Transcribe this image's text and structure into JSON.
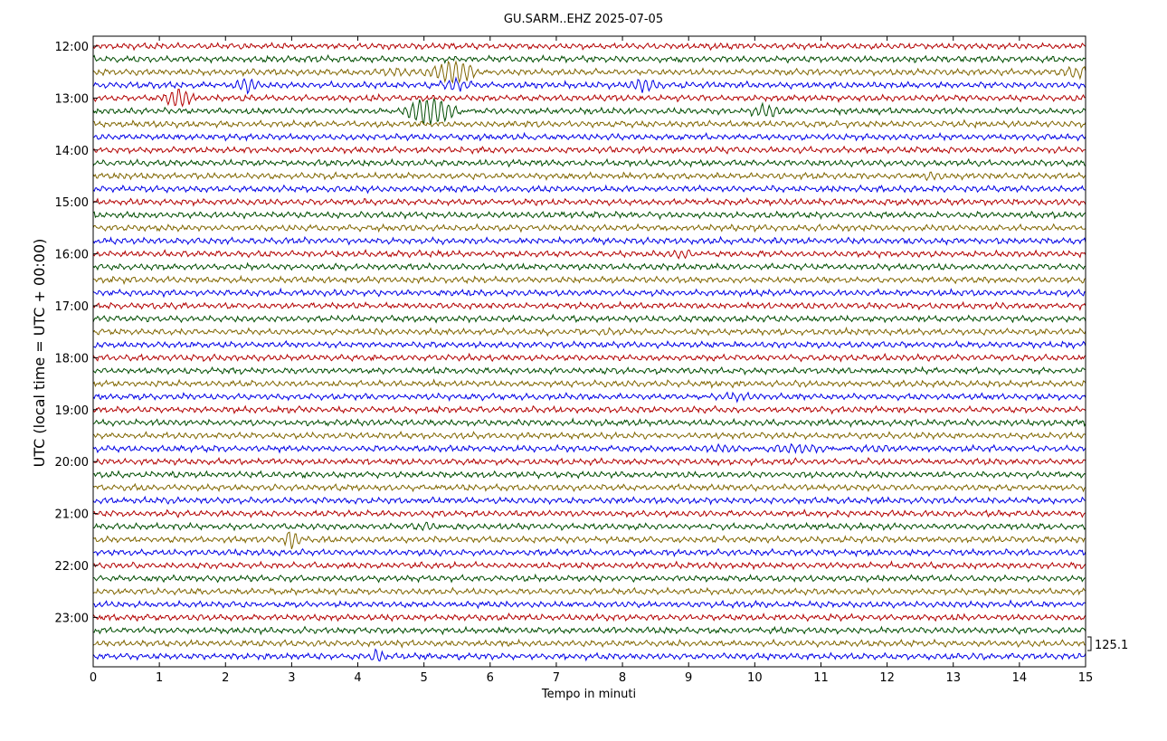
{
  "chart_data": {
    "type": "line",
    "title": "GU.SARM..EHZ 2025-07-05",
    "xlabel": "Tempo in minuti",
    "ylabel": "UTC (local time = UTC + 00:00)",
    "xlim": [
      0,
      15
    ],
    "x_ticks": [
      0,
      1,
      2,
      3,
      4,
      5,
      6,
      7,
      8,
      9,
      10,
      11,
      12,
      13,
      14,
      15
    ],
    "y_tick_labels": [
      "12:00",
      "13:00",
      "14:00",
      "15:00",
      "16:00",
      "17:00",
      "18:00",
      "19:00",
      "20:00",
      "21:00",
      "22:00",
      "23:00"
    ],
    "trace_interval_minutes": 15,
    "trace_count": 48,
    "first_trace_time": "12:00",
    "color_cycle": [
      "#b30000",
      "#004d00",
      "#806600",
      "#0000e6"
    ],
    "scale_label": "125.1",
    "grid": false,
    "legend": "none",
    "events": [
      {
        "row": 2,
        "minute": 5.5,
        "amp": 2.6,
        "dur": 0.35
      },
      {
        "row": 2,
        "minute": 4.6,
        "amp": 1.4,
        "dur": 0.25
      },
      {
        "row": 2,
        "minute": 14.8,
        "amp": 1.5,
        "dur": 0.3
      },
      {
        "row": 3,
        "minute": 2.35,
        "amp": 1.6,
        "dur": 0.15
      },
      {
        "row": 3,
        "minute": 5.45,
        "amp": 1.7,
        "dur": 0.25
      },
      {
        "row": 3,
        "minute": 8.3,
        "amp": 1.3,
        "dur": 0.2
      },
      {
        "row": 4,
        "minute": 1.3,
        "amp": 2.0,
        "dur": 0.2
      },
      {
        "row": 5,
        "minute": 5.1,
        "amp": 3.0,
        "dur": 0.4
      },
      {
        "row": 5,
        "minute": 10.2,
        "amp": 1.2,
        "dur": 0.25
      },
      {
        "row": 10,
        "minute": 12.6,
        "amp": 1.0,
        "dur": 0.2
      },
      {
        "row": 16,
        "minute": 9.0,
        "amp": 0.8,
        "dur": 0.25
      },
      {
        "row": 22,
        "minute": 7.7,
        "amp": 1.0,
        "dur": 0.15
      },
      {
        "row": 27,
        "minute": 9.5,
        "amp": 0.6,
        "dur": 0.5
      },
      {
        "row": 31,
        "minute": 10.5,
        "amp": 0.6,
        "dur": 1.5
      },
      {
        "row": 37,
        "minute": 5.1,
        "amp": 1.0,
        "dur": 0.2
      },
      {
        "row": 38,
        "minute": 3.0,
        "amp": 2.0,
        "dur": 0.1
      },
      {
        "row": 47,
        "minute": 4.3,
        "amp": 1.4,
        "dur": 0.1
      },
      {
        "row": 47,
        "minute": 13.4,
        "amp": 1.0,
        "dur": 0.15
      }
    ]
  }
}
